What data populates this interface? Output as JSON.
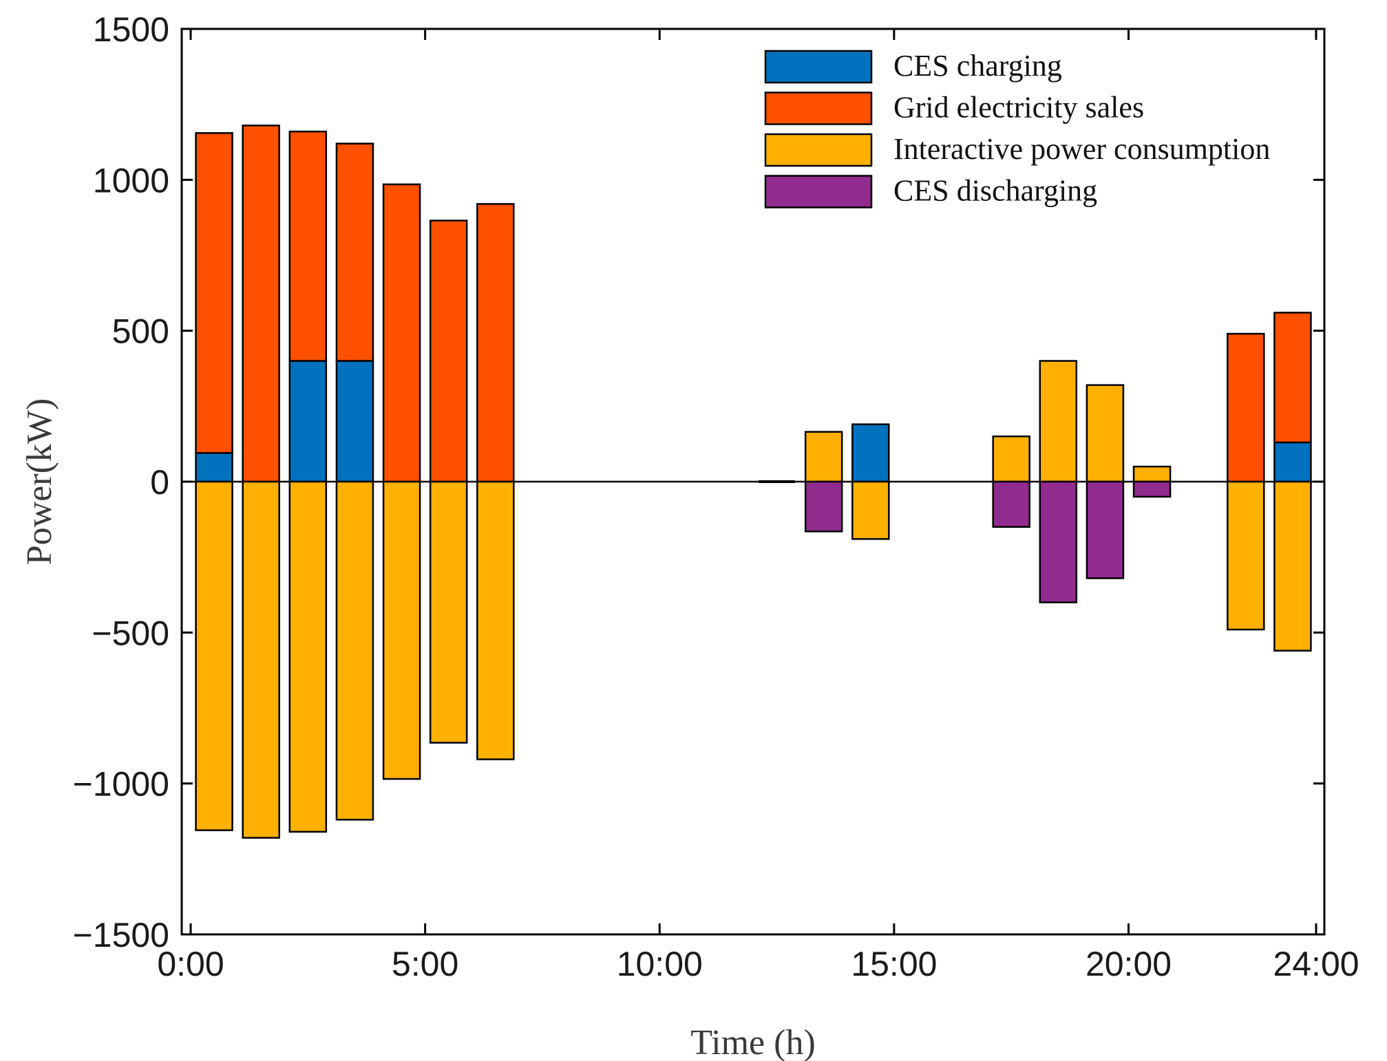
{
  "chart_data": {
    "type": "bar",
    "stacked": true,
    "title": "",
    "xlabel": "Time (h)",
    "ylabel": "Power(kW)",
    "xlim": [
      0,
      24
    ],
    "ylim": [
      -1500,
      1500
    ],
    "x_ticks": [
      {
        "value": 0,
        "label": "0:00"
      },
      {
        "value": 5,
        "label": "5:00"
      },
      {
        "value": 10,
        "label": "10:00"
      },
      {
        "value": 15,
        "label": "15:00"
      },
      {
        "value": 20,
        "label": "20:00"
      },
      {
        "value": 24,
        "label": "24:00"
      }
    ],
    "y_ticks": [
      {
        "value": 1500,
        "label": "1500"
      },
      {
        "value": 1000,
        "label": "1000"
      },
      {
        "value": 500,
        "label": "500"
      },
      {
        "value": 0,
        "label": "0"
      },
      {
        "value": -500,
        "label": "−500"
      },
      {
        "value": -1000,
        "label": "−1000"
      },
      {
        "value": -1500,
        "label": "−1500"
      }
    ],
    "x": [
      1,
      2,
      3,
      4,
      5,
      6,
      7,
      13,
      14,
      15,
      18,
      19,
      20,
      21,
      23,
      24
    ],
    "series": [
      {
        "name": "CES charging",
        "color": "#0072BD",
        "values": [
          95,
          0,
          400,
          400,
          0,
          0,
          0,
          0,
          0,
          190,
          0,
          0,
          0,
          0,
          0,
          130
        ]
      },
      {
        "name": "Grid electricity sales",
        "color": "#FF5000",
        "values": [
          1060,
          1180,
          760,
          720,
          985,
          865,
          920,
          0,
          0,
          0,
          0,
          0,
          0,
          0,
          490,
          430
        ]
      },
      {
        "name": "Interactive power consumption",
        "color": "#FFB000",
        "values": [
          -1155,
          -1180,
          -1160,
          -1120,
          -985,
          -865,
          -920,
          0,
          165,
          -190,
          150,
          400,
          320,
          50,
          -490,
          -560
        ]
      },
      {
        "name": "CES discharging",
        "color": "#922B8E",
        "values": [
          0,
          0,
          0,
          0,
          0,
          0,
          0,
          0,
          -165,
          0,
          -150,
          -400,
          -320,
          -50,
          0,
          0
        ]
      }
    ],
    "legend": {
      "position": "top-right",
      "entries": [
        "CES charging",
        "Grid electricity sales",
        "Interactive power consumption",
        "CES discharging"
      ]
    }
  }
}
